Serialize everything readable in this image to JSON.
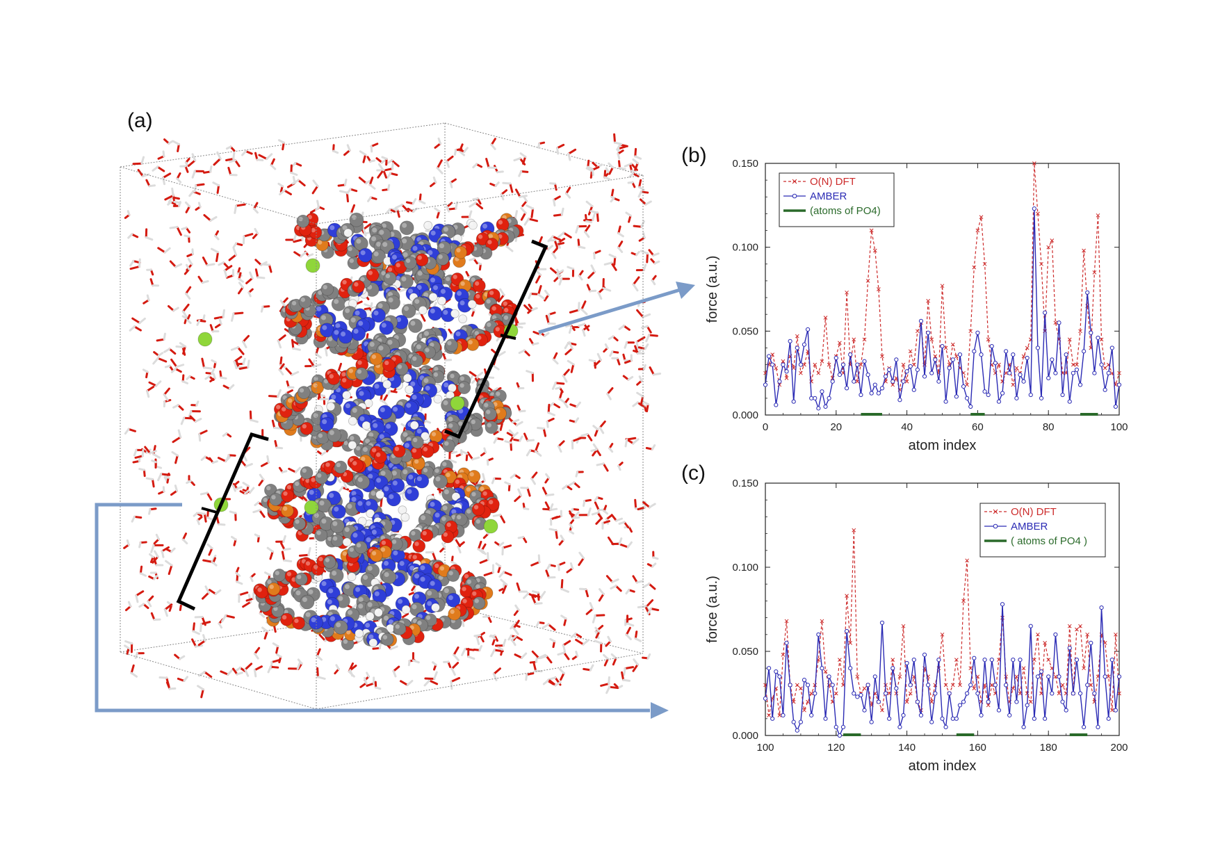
{
  "panel_a": {
    "label": "(a)",
    "description_icon": "dna-molecule-in-water-box",
    "colors": {
      "water_o": "#d41a10",
      "water_h": "#dcdcdc",
      "carbon": "#808080",
      "nitrogen": "#2f3ed8",
      "oxygen": "#e0220f",
      "phosphorus": "#e07b1c",
      "sodium": "#8fd63a",
      "hydrogen": "#f2f2f2",
      "arrow": "#7b9bc8",
      "bracket": "#000000",
      "box": "#888888"
    }
  },
  "chart_data": [
    {
      "type": "line",
      "panel_label": "(b)",
      "title": "",
      "xlabel": "atom index",
      "ylabel": "force (a.u.)",
      "xlim": [
        0,
        100
      ],
      "ylim": [
        0,
        0.15
      ],
      "xticks": [
        "0",
        "20",
        "40",
        "60",
        "80",
        "100"
      ],
      "yticks": [
        "0.000",
        "0.050",
        "0.100",
        "0.150"
      ],
      "legend_position": "top-left",
      "legend": [
        "O(N) DFT",
        "AMBER",
        "(atoms of PO4)"
      ],
      "po4_ranges": [
        [
          27,
          33
        ],
        [
          58,
          62
        ],
        [
          89,
          94
        ]
      ],
      "series": [
        {
          "name": "O(N) DFT",
          "color": "#cc2a2a",
          "style": "dashed-x",
          "x": [
            0,
            1,
            2,
            3,
            4,
            5,
            6,
            7,
            8,
            9,
            10,
            11,
            12,
            13,
            14,
            15,
            16,
            17,
            18,
            19,
            20,
            21,
            22,
            23,
            24,
            25,
            26,
            27,
            28,
            29,
            30,
            31,
            32,
            33,
            34,
            35,
            36,
            37,
            38,
            39,
            40,
            41,
            42,
            43,
            44,
            45,
            46,
            47,
            48,
            49,
            50,
            51,
            52,
            53,
            54,
            55,
            56,
            57,
            58,
            59,
            60,
            61,
            62,
            63,
            64,
            65,
            66,
            67,
            68,
            69,
            70,
            71,
            72,
            73,
            74,
            75,
            76,
            77,
            78,
            79,
            80,
            81,
            82,
            83,
            84,
            85,
            86,
            87,
            88,
            89,
            90,
            91,
            92,
            93,
            94,
            95,
            96,
            97,
            98,
            99,
            100
          ],
          "y": [
            0.025,
            0.03,
            0.036,
            0.028,
            0.018,
            0.032,
            0.022,
            0.035,
            0.028,
            0.047,
            0.025,
            0.03,
            0.038,
            0.02,
            0.03,
            0.025,
            0.032,
            0.058,
            0.03,
            0.022,
            0.035,
            0.043,
            0.025,
            0.073,
            0.03,
            0.045,
            0.02,
            0.03,
            0.045,
            0.08,
            0.11,
            0.098,
            0.075,
            0.035,
            0.02,
            0.028,
            0.018,
            0.022,
            0.015,
            0.03,
            0.02,
            0.038,
            0.03,
            0.05,
            0.055,
            0.03,
            0.068,
            0.045,
            0.035,
            0.025,
            0.077,
            0.04,
            0.03,
            0.042,
            0.035,
            0.028,
            0.025,
            0.018,
            0.05,
            0.088,
            0.11,
            0.118,
            0.09,
            0.045,
            0.03,
            0.025,
            0.03,
            0.02,
            0.025,
            0.03,
            0.018,
            0.028,
            0.025,
            0.035,
            0.04,
            0.045,
            0.15,
            0.12,
            0.09,
            0.05,
            0.1,
            0.104,
            0.055,
            0.045,
            0.025,
            0.025,
            0.045,
            0.03,
            0.03,
            0.05,
            0.098,
            0.065,
            0.04,
            0.085,
            0.119,
            0.045,
            0.028,
            0.03,
            0.025,
            0.018,
            0.025
          ]
        },
        {
          "name": "AMBER",
          "color": "#2a2ab4",
          "style": "solid-circle",
          "x": [
            0,
            1,
            2,
            3,
            4,
            5,
            6,
            7,
            8,
            9,
            10,
            11,
            12,
            13,
            14,
            15,
            16,
            17,
            18,
            19,
            20,
            21,
            22,
            23,
            24,
            25,
            26,
            27,
            28,
            29,
            30,
            31,
            32,
            33,
            34,
            35,
            36,
            37,
            38,
            39,
            40,
            41,
            42,
            43,
            44,
            45,
            46,
            47,
            48,
            49,
            50,
            51,
            52,
            53,
            54,
            55,
            56,
            57,
            58,
            59,
            60,
            61,
            62,
            63,
            64,
            65,
            66,
            67,
            68,
            69,
            70,
            71,
            72,
            73,
            74,
            75,
            76,
            77,
            78,
            79,
            80,
            81,
            82,
            83,
            84,
            85,
            86,
            87,
            88,
            89,
            90,
            91,
            92,
            93,
            94,
            95,
            96,
            97,
            98,
            99,
            100
          ],
          "y": [
            0.018,
            0.035,
            0.03,
            0.006,
            0.02,
            0.03,
            0.026,
            0.044,
            0.008,
            0.04,
            0.03,
            0.042,
            0.051,
            0.01,
            0.01,
            0.004,
            0.014,
            0.005,
            0.01,
            0.02,
            0.034,
            0.024,
            0.03,
            0.016,
            0.036,
            0.02,
            0.03,
            0.012,
            0.032,
            0.024,
            0.013,
            0.018,
            0.013,
            0.016,
            0.023,
            0.027,
            0.02,
            0.033,
            0.009,
            0.02,
            0.026,
            0.029,
            0.015,
            0.027,
            0.056,
            0.023,
            0.049,
            0.025,
            0.033,
            0.02,
            0.041,
            0.008,
            0.028,
            0.033,
            0.011,
            0.036,
            0.017,
            0.01,
            0.005,
            0.038,
            0.049,
            0.036,
            0.014,
            0.012,
            0.041,
            0.031,
            0.008,
            0.013,
            0.038,
            0.025,
            0.036,
            0.01,
            0.024,
            0.02,
            0.034,
            0.012,
            0.123,
            0.04,
            0.01,
            0.061,
            0.022,
            0.033,
            0.025,
            0.055,
            0.012,
            0.036,
            0.008,
            0.025,
            0.027,
            0.018,
            0.038,
            0.073,
            0.049,
            0.025,
            0.046,
            0.03,
            0.015,
            0.025,
            0.04,
            0.005,
            0.018
          ]
        }
      ]
    },
    {
      "type": "line",
      "panel_label": "(c)",
      "title": "",
      "xlabel": "atom index",
      "ylabel": "force (a.u.)",
      "xlim": [
        100,
        200
      ],
      "ylim": [
        0,
        0.15
      ],
      "xticks": [
        "100",
        "120",
        "140",
        "160",
        "180",
        "200"
      ],
      "yticks": [
        "0.000",
        "0.050",
        "0.100",
        "0.150"
      ],
      "legend_position": "top-right",
      "legend": [
        "O(N) DFT",
        "AMBER",
        "( atoms of PO4 )"
      ],
      "po4_ranges": [
        [
          122,
          127
        ],
        [
          154,
          159
        ],
        [
          186,
          191
        ]
      ],
      "series": [
        {
          "name": "O(N) DFT",
          "color": "#cc2a2a",
          "style": "dashed-x",
          "x": [
            100,
            101,
            102,
            103,
            104,
            105,
            106,
            107,
            108,
            109,
            110,
            111,
            112,
            113,
            114,
            115,
            116,
            117,
            118,
            119,
            120,
            121,
            122,
            123,
            124,
            125,
            126,
            127,
            128,
            129,
            130,
            131,
            132,
            133,
            134,
            135,
            136,
            137,
            138,
            139,
            140,
            141,
            142,
            143,
            144,
            145,
            146,
            147,
            148,
            149,
            150,
            151,
            152,
            153,
            154,
            155,
            156,
            157,
            158,
            159,
            160,
            161,
            162,
            163,
            164,
            165,
            166,
            167,
            168,
            169,
            170,
            171,
            172,
            173,
            174,
            175,
            176,
            177,
            178,
            179,
            180,
            181,
            182,
            183,
            184,
            185,
            186,
            187,
            188,
            189,
            190,
            191,
            192,
            193,
            194,
            195,
            196,
            197,
            198,
            199,
            200
          ],
          "y": [
            0.03,
            0.012,
            0.022,
            0.028,
            0.012,
            0.048,
            0.068,
            0.03,
            0.02,
            0.03,
            0.028,
            0.015,
            0.02,
            0.025,
            0.03,
            0.045,
            0.068,
            0.038,
            0.03,
            0.02,
            0.025,
            0.045,
            0.03,
            0.083,
            0.055,
            0.122,
            0.035,
            0.025,
            0.028,
            0.03,
            0.018,
            0.025,
            0.02,
            0.015,
            0.03,
            0.025,
            0.045,
            0.025,
            0.035,
            0.065,
            0.02,
            0.025,
            0.035,
            0.02,
            0.015,
            0.04,
            0.035,
            0.02,
            0.03,
            0.04,
            0.06,
            0.03,
            0.025,
            0.03,
            0.045,
            0.03,
            0.08,
            0.104,
            0.04,
            0.028,
            0.035,
            0.02,
            0.03,
            0.018,
            0.03,
            0.025,
            0.045,
            0.07,
            0.035,
            0.02,
            0.028,
            0.035,
            0.025,
            0.04,
            0.025,
            0.02,
            0.045,
            0.06,
            0.025,
            0.055,
            0.045,
            0.04,
            0.035,
            0.025,
            0.03,
            0.025,
            0.065,
            0.025,
            0.063,
            0.065,
            0.04,
            0.06,
            0.03,
            0.02,
            0.035,
            0.06,
            0.055,
            0.035,
            0.015,
            0.06,
            0.025
          ]
        },
        {
          "name": "AMBER",
          "color": "#2a2ab4",
          "style": "solid-circle",
          "x": [
            100,
            101,
            102,
            103,
            104,
            105,
            106,
            107,
            108,
            109,
            110,
            111,
            112,
            113,
            114,
            115,
            116,
            117,
            118,
            119,
            120,
            121,
            122,
            123,
            124,
            125,
            126,
            127,
            128,
            129,
            130,
            131,
            132,
            133,
            134,
            135,
            136,
            137,
            138,
            139,
            140,
            141,
            142,
            143,
            144,
            145,
            146,
            147,
            148,
            149,
            150,
            151,
            152,
            153,
            154,
            155,
            156,
            157,
            158,
            159,
            160,
            161,
            162,
            163,
            164,
            165,
            166,
            167,
            168,
            169,
            170,
            171,
            172,
            173,
            174,
            175,
            176,
            177,
            178,
            179,
            180,
            181,
            182,
            183,
            184,
            185,
            186,
            187,
            188,
            189,
            190,
            191,
            192,
            193,
            194,
            195,
            196,
            197,
            198,
            199,
            200
          ],
          "y": [
            0.022,
            0.04,
            0.01,
            0.038,
            0.035,
            0.012,
            0.055,
            0.03,
            0.008,
            0.003,
            0.008,
            0.033,
            0.03,
            0.012,
            0.025,
            0.06,
            0.04,
            0.01,
            0.035,
            0.03,
            0.005,
            0.0,
            0.005,
            0.062,
            0.04,
            0.025,
            0.023,
            0.024,
            0.015,
            0.03,
            0.008,
            0.035,
            0.02,
            0.067,
            0.025,
            0.01,
            0.04,
            0.028,
            0.005,
            0.012,
            0.043,
            0.03,
            0.045,
            0.02,
            0.012,
            0.048,
            0.03,
            0.008,
            0.025,
            0.045,
            0.01,
            0.005,
            0.025,
            0.01,
            0.01,
            0.018,
            0.02,
            0.025,
            0.03,
            0.046,
            0.025,
            0.012,
            0.045,
            0.02,
            0.045,
            0.03,
            0.015,
            0.078,
            0.03,
            0.012,
            0.045,
            0.02,
            0.045,
            0.005,
            0.018,
            0.065,
            0.01,
            0.035,
            0.038,
            0.01,
            0.035,
            0.025,
            0.06,
            0.035,
            0.02,
            0.015,
            0.052,
            0.025,
            0.045,
            0.025,
            0.005,
            0.03,
            0.055,
            0.025,
            0.005,
            0.076,
            0.035,
            0.01,
            0.045,
            0.015,
            0.035
          ]
        }
      ]
    }
  ]
}
